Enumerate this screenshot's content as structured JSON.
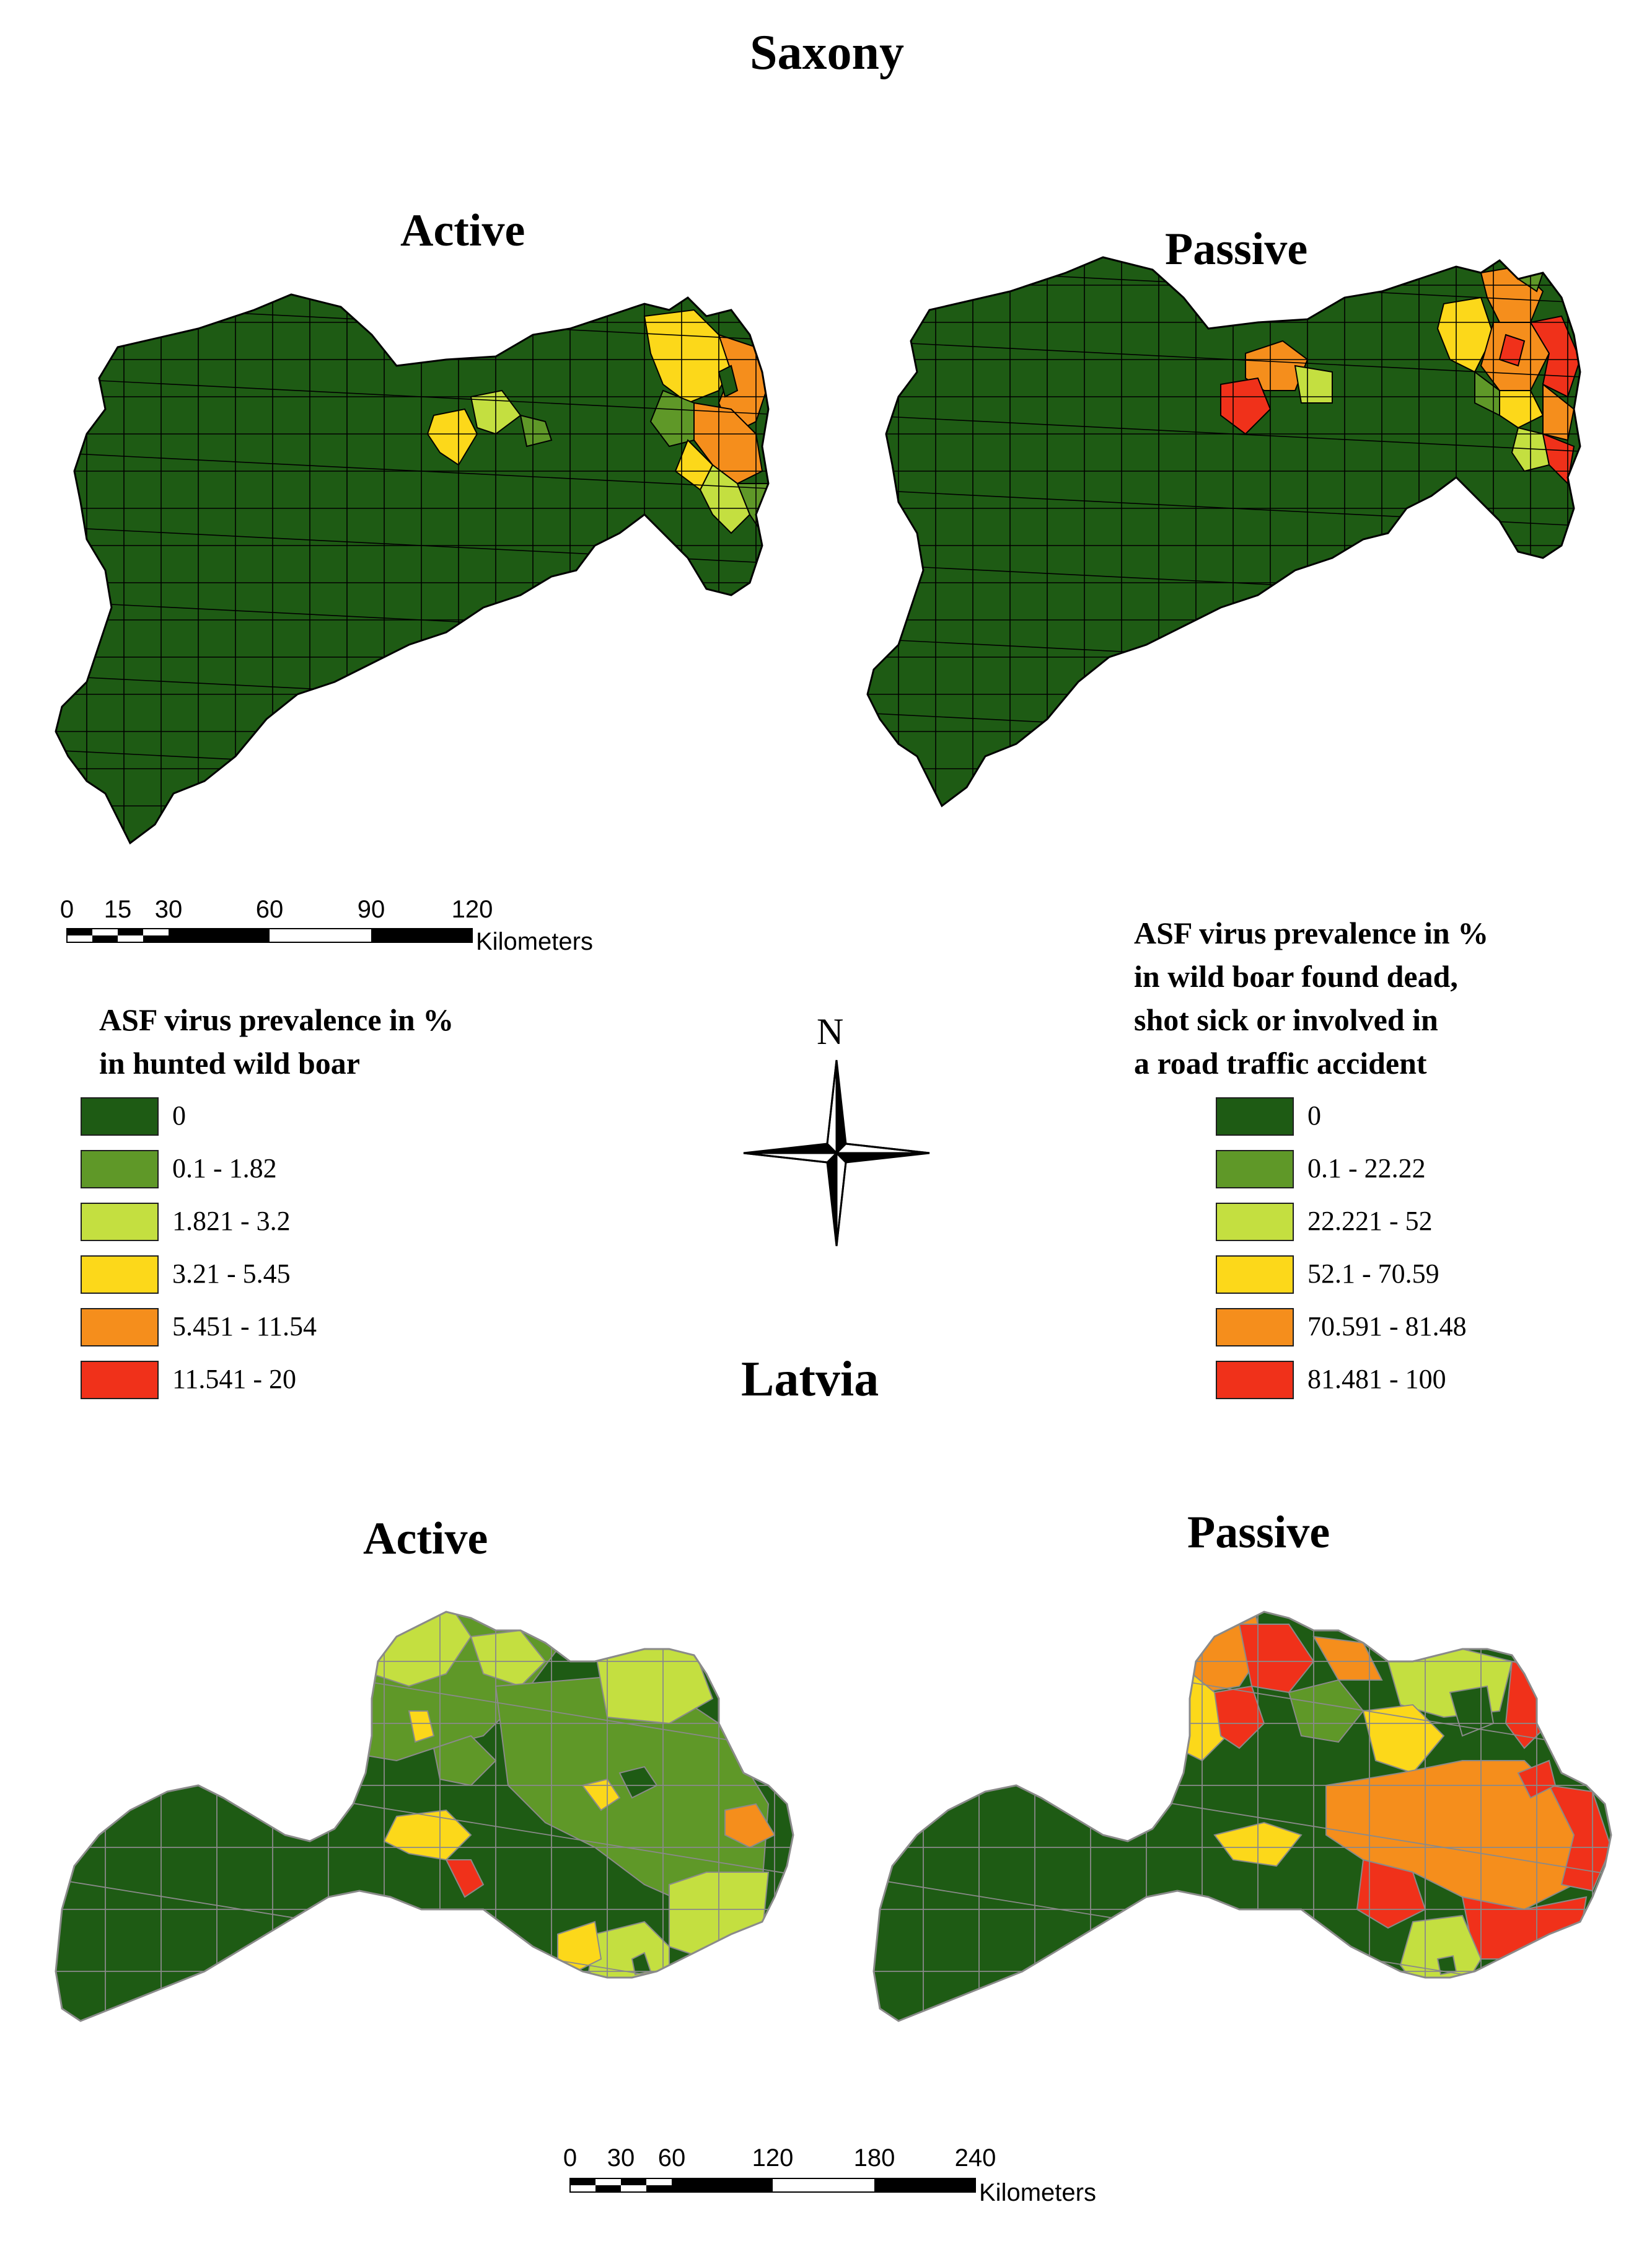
{
  "figure": {
    "saxony_title": "Saxony",
    "latvia_title": "Latvia",
    "saxony_active_label": "Active",
    "saxony_passive_label": "Passive",
    "latvia_active_label": "Active",
    "latvia_passive_label": "Passive",
    "north_label": "N"
  },
  "colors": {
    "c0": "#1e5b14",
    "c1": "#5f9828",
    "c2": "#c4df40",
    "c3": "#fcd81a",
    "c4": "#f58e1c",
    "c5": "#f0311a",
    "saxony_border": "#000000",
    "latvia_border": "#8a8a8a"
  },
  "scalebars": {
    "saxony": {
      "ticks": [
        "0",
        "15",
        "30",
        "60",
        "90",
        "120"
      ],
      "unit": "Kilometers"
    },
    "latvia": {
      "ticks": [
        "0",
        "30",
        "60",
        "120",
        "180",
        "240"
      ],
      "unit": "Kilometers"
    }
  },
  "legend_active": {
    "title_line1": "ASF virus prevalence in %",
    "title_line2": "in hunted wild boar",
    "classes": [
      {
        "label": "0",
        "color": "#1e5b14"
      },
      {
        "label": "0.1 - 1.82",
        "color": "#5f9828"
      },
      {
        "label": "1.821 - 3.2",
        "color": "#c4df40"
      },
      {
        "label": "3.21 - 5.45",
        "color": "#fcd81a"
      },
      {
        "label": "5.451 - 11.54",
        "color": "#f58e1c"
      },
      {
        "label": "11.541 - 20",
        "color": "#f0311a"
      }
    ]
  },
  "legend_passive": {
    "title_line1": "ASF virus prevalence in %",
    "title_line2": "in wild boar found dead,",
    "title_line3": "shot sick or involved in",
    "title_line4": "a road traffic accident",
    "classes": [
      {
        "label": "0",
        "color": "#1e5b14"
      },
      {
        "label": "0.1 - 22.22",
        "color": "#5f9828"
      },
      {
        "label": "22.221 - 52",
        "color": "#c4df40"
      },
      {
        "label": "52.1 - 70.59",
        "color": "#fcd81a"
      },
      {
        "label": "70.591 - 81.48",
        "color": "#f58e1c"
      },
      {
        "label": "81.481 - 100",
        "color": "#f0311a"
      }
    ]
  }
}
